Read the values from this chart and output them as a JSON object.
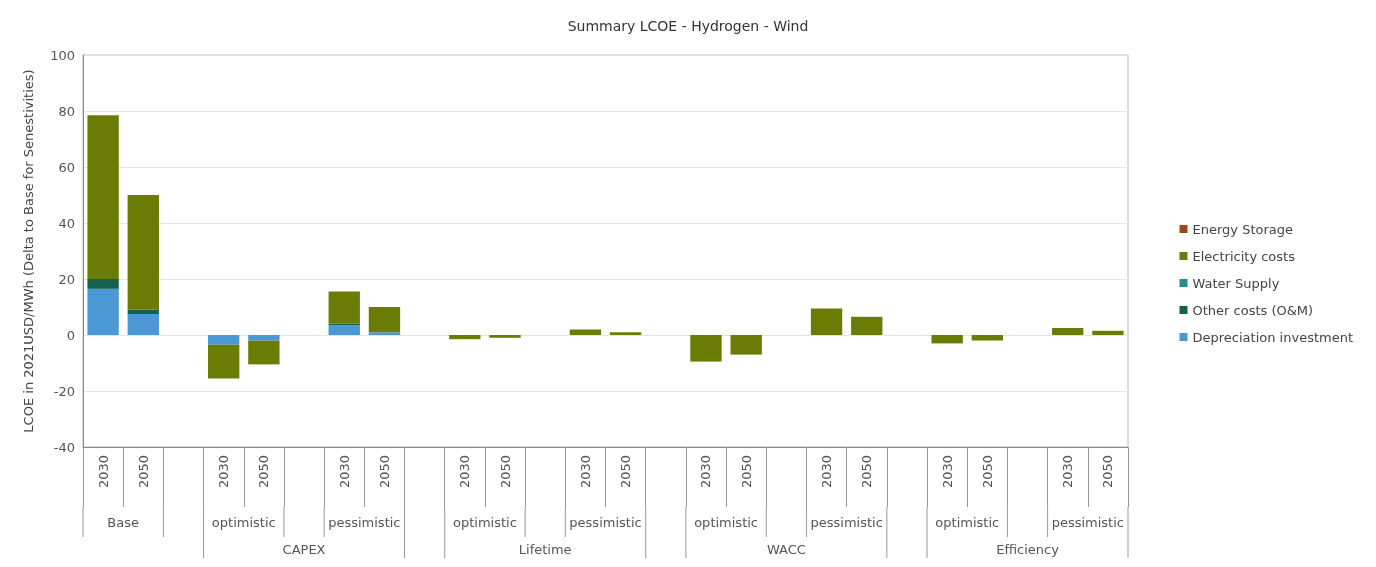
{
  "chart_data": {
    "type": "bar",
    "title": "Summary LCOE - Hydrogen - Wind",
    "ylabel": "LCOE in 2021USD/MWh (Delta to Base for Senestivities)",
    "categories": [
      "2030",
      "2050",
      null,
      "2030",
      "2050",
      null,
      "2030",
      "2050",
      null,
      "2030",
      "2050",
      null,
      "2030",
      "2050",
      null,
      "2030",
      "2050",
      null,
      "2030",
      "2050",
      null,
      "2030",
      "2050",
      null,
      "2030",
      "2050"
    ],
    "stacked": true,
    "series": [
      {
        "name": "Depreciation investment",
        "color": "#4a98d6",
        "values": [
          16.5,
          7.5,
          null,
          -3.5,
          -2,
          null,
          3.5,
          1,
          null,
          0,
          0,
          null,
          0,
          0,
          null,
          0,
          0,
          null,
          0,
          0,
          null,
          0,
          0,
          null,
          0,
          0
        ]
      },
      {
        "name": "Other costs (O&M)",
        "color": "#15604f",
        "values": [
          3.5,
          1.5,
          null,
          0,
          0,
          null,
          0.5,
          0,
          null,
          0,
          0,
          null,
          0,
          0,
          null,
          0,
          0,
          null,
          0,
          0,
          null,
          0,
          0,
          null,
          0,
          0
        ]
      },
      {
        "name": "Water Supply",
        "color": "#2b8c8c",
        "values": [
          0,
          0,
          null,
          0,
          0,
          null,
          0,
          0,
          null,
          0,
          0,
          null,
          0,
          0,
          null,
          0,
          0,
          null,
          0,
          0,
          null,
          0,
          0,
          null,
          0,
          0
        ]
      },
      {
        "name": "Electricity costs",
        "color": "#6b7c05",
        "values": [
          58.5,
          41,
          null,
          -12,
          -8.5,
          null,
          11.5,
          9,
          null,
          -1.5,
          -1,
          null,
          2,
          1,
          null,
          -9.5,
          -7,
          null,
          9.5,
          6.5,
          null,
          -3,
          -2,
          null,
          2.5,
          1.5
        ]
      },
      {
        "name": "Energy Storage",
        "color": "#9c4a1c",
        "values": [
          0,
          0,
          null,
          0,
          0,
          null,
          0,
          0,
          null,
          0,
          0,
          null,
          0,
          0,
          null,
          0,
          0,
          null,
          0,
          0,
          null,
          0,
          0,
          null,
          0,
          0
        ]
      }
    ],
    "ylim": [
      -40,
      100
    ],
    "yticks": [
      -40,
      -20,
      0,
      20,
      40,
      60,
      80,
      100
    ],
    "grid": "y",
    "legend": "right",
    "annotations": [
      "Base",
      "optimistic",
      "pessimistic",
      "optimistic",
      "pessimistic",
      "optimistic",
      "pessimistic",
      "optimistic",
      "pessimistic",
      "CAPEX",
      "Lifetime",
      "WACC",
      "Efficiency"
    ]
  }
}
